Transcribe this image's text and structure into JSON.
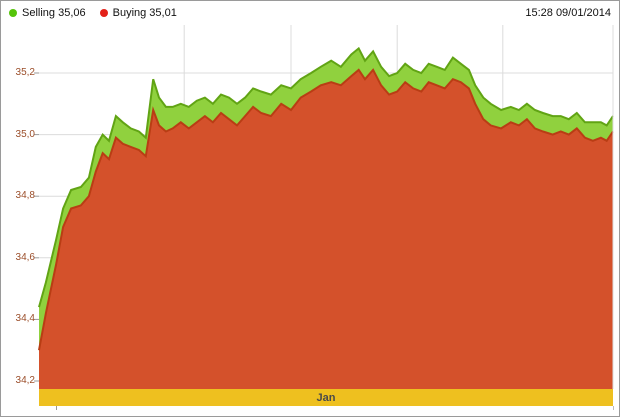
{
  "header": {
    "legend": [
      {
        "label": "Selling 35,06",
        "color": "#55c40a"
      },
      {
        "label": "Buying 35,01",
        "color": "#e32119"
      }
    ],
    "timestamp": "15:28 09/01/2014"
  },
  "chart_data": {
    "type": "area",
    "title": "",
    "xlabel": "Jan",
    "x_axis_label": "Jan",
    "ylabel": "",
    "ylim": [
      34.17,
      35.36
    ],
    "grid": true,
    "legend_position": "top-left",
    "yticks": [
      35.2,
      35.0,
      34.8,
      34.6,
      34.4,
      34.2
    ],
    "ytick_labels": [
      "35,2",
      "35,0",
      "34,8",
      "34,6",
      "34,4",
      "34,2"
    ],
    "vgrid_percent": [
      25.3,
      43.9,
      62.4,
      80.8
    ],
    "colors": {
      "grid": "#dcdcdc",
      "axis_tick": "#999999"
    },
    "x_percent": [
      0,
      1.2,
      3,
      4.2,
      5.6,
      7.3,
      8.7,
      9.9,
      11.1,
      12.2,
      13.4,
      14.6,
      16,
      17.4,
      18.6,
      19.9,
      20.9,
      22.1,
      23.3,
      24.7,
      26.1,
      27.5,
      28.9,
      30.3,
      31.7,
      33.1,
      34.5,
      35.9,
      37.3,
      38.7,
      40.4,
      42.2,
      43.9,
      45.6,
      47.4,
      49.1,
      50.9,
      52.6,
      54.4,
      55.7,
      56.8,
      58.2,
      59.6,
      61,
      62.4,
      63.8,
      65.2,
      66.6,
      67.9,
      69.3,
      70.7,
      72.1,
      73.5,
      74.9,
      76,
      77.4,
      78.7,
      80.5,
      82.2,
      83.6,
      85,
      86.4,
      87.8,
      89.5,
      90.9,
      92.3,
      93.7,
      95.1,
      96.5,
      97.9,
      98.9,
      100
    ],
    "series": [
      {
        "name": "Selling",
        "current": "35,06",
        "fill": "#90d13e",
        "line": "#61a414",
        "values": [
          34.44,
          34.52,
          34.66,
          34.76,
          34.82,
          34.83,
          34.86,
          34.96,
          35.0,
          34.98,
          35.06,
          35.04,
          35.02,
          35.01,
          34.99,
          35.18,
          35.12,
          35.09,
          35.09,
          35.1,
          35.09,
          35.11,
          35.12,
          35.1,
          35.13,
          35.12,
          35.1,
          35.12,
          35.15,
          35.14,
          35.13,
          35.16,
          35.15,
          35.18,
          35.2,
          35.22,
          35.24,
          35.22,
          35.26,
          35.28,
          35.24,
          35.27,
          35.22,
          35.19,
          35.2,
          35.23,
          35.21,
          35.2,
          35.23,
          35.22,
          35.21,
          35.25,
          35.23,
          35.21,
          35.16,
          35.12,
          35.1,
          35.08,
          35.09,
          35.08,
          35.1,
          35.08,
          35.07,
          35.06,
          35.06,
          35.05,
          35.07,
          35.04,
          35.04,
          35.04,
          35.03,
          35.06
        ]
      },
      {
        "name": "Buying",
        "current": "35,01",
        "fill": "#d4512b",
        "line": "#b93d14",
        "values": [
          34.3,
          34.42,
          34.58,
          34.7,
          34.76,
          34.77,
          34.8,
          34.88,
          34.94,
          34.92,
          34.99,
          34.97,
          34.96,
          34.95,
          34.93,
          35.08,
          35.03,
          35.01,
          35.02,
          35.04,
          35.02,
          35.04,
          35.06,
          35.04,
          35.07,
          35.05,
          35.03,
          35.06,
          35.09,
          35.07,
          35.06,
          35.1,
          35.08,
          35.12,
          35.14,
          35.16,
          35.17,
          35.16,
          35.19,
          35.21,
          35.18,
          35.21,
          35.16,
          35.13,
          35.14,
          35.17,
          35.15,
          35.14,
          35.17,
          35.16,
          35.15,
          35.18,
          35.17,
          35.15,
          35.1,
          35.05,
          35.03,
          35.02,
          35.04,
          35.03,
          35.05,
          35.02,
          35.01,
          35.0,
          35.01,
          35.0,
          35.02,
          34.99,
          34.98,
          34.99,
          34.98,
          35.01
        ]
      }
    ]
  }
}
